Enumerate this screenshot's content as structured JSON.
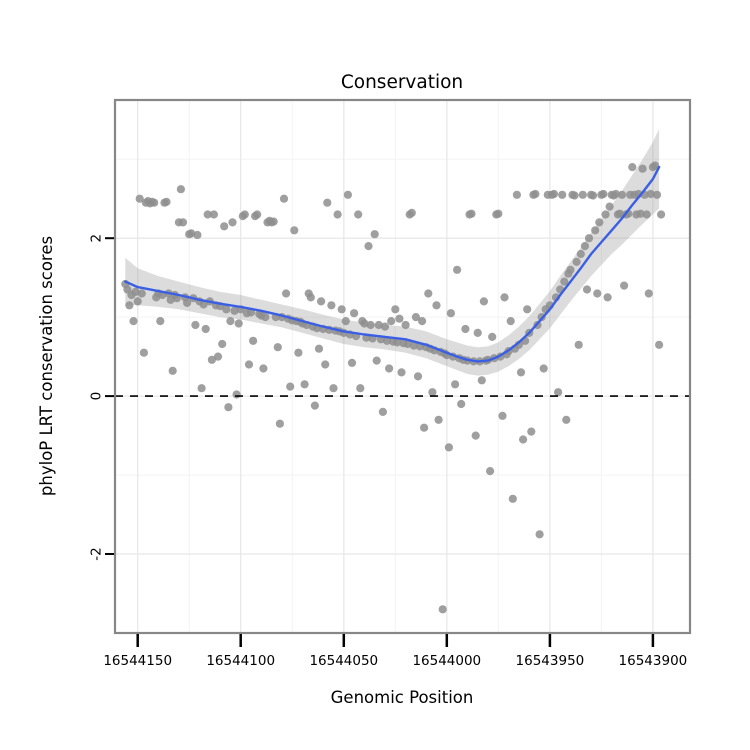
{
  "chart_data": {
    "type": "scatter",
    "title": "Conservation",
    "xlabel": "Genomic Position",
    "ylabel": "phyloP LRT conservation scores",
    "x_reversed": true,
    "x_domain": [
      16544161,
      16543882
    ],
    "y_domain": [
      -3.0,
      3.75
    ],
    "x_ticks": [
      16544150,
      16544100,
      16544050,
      16544000,
      16543950,
      16543900
    ],
    "x_tick_labels": [
      "16544150",
      "16544100",
      "16544050",
      "16544000",
      "16543950",
      "16543900"
    ],
    "x_minor_ticks": [
      16544125,
      16544075,
      16544025,
      16543975,
      16543925
    ],
    "y_ticks": [
      -2,
      0,
      2
    ],
    "y_tick_labels": [
      "-2",
      "0",
      "2"
    ],
    "y_minor_ticks": [
      -3,
      -1,
      1,
      3
    ],
    "reference_line_y": 0,
    "legend": "none",
    "grid": "on",
    "points": {
      "start": 16544156,
      "step": -1,
      "scores": [
        1.42,
        1.35,
        1.15,
        1.28,
        0.95,
        1.32,
        1.2,
        2.5,
        1.3,
        0.55,
        2.45,
        2.47,
        2.44,
        2.46,
        2.45,
        1.25,
        1.3,
        0.95,
        1.28,
        2.45,
        2.46,
        1.3,
        1.22,
        0.32,
        1.28,
        1.24,
        2.2,
        2.62,
        2.2,
        1.25,
        1.18,
        2.05,
        2.06,
        1.24,
        0.9,
        2.04,
        1.2,
        0.1,
        1.16,
        0.85,
        2.3,
        1.2,
        0.46,
        2.3,
        1.15,
        0.5,
        1.14,
        0.66,
        2.15,
        1.1,
        -0.14,
        0.95,
        2.2,
        1.08,
        0.02,
        0.92,
        1.1,
        2.28,
        2.3,
        1.05,
        0.4,
        1.06,
        0.7,
        2.28,
        2.3,
        1.04,
        1.02,
        0.35,
        1.0,
        2.2,
        2.22,
        2.2,
        2.21,
        1.0,
        0.62,
        -0.35,
        1.0,
        2.5,
        1.3,
        0.98,
        0.12,
        0.96,
        2.1,
        0.95,
        0.55,
        0.94,
        0.92,
        0.15,
        0.9,
        1.3,
        1.25,
        0.88,
        -0.12,
        0.86,
        0.6,
        1.2,
        0.85,
        0.4,
        2.45,
        0.84,
        1.15,
        0.1,
        0.83,
        2.3,
        0.82,
        1.1,
        0.8,
        0.95,
        2.55,
        0.78,
        0.42,
        1.05,
        0.76,
        2.3,
        0.1,
        0.95,
        0.92,
        0.74,
        1.9,
        0.9,
        0.73,
        2.05,
        0.45,
        0.9,
        0.72,
        -0.2,
        0.88,
        0.7,
        0.35,
        0.95,
        0.69,
        1.1,
        0.68,
        0.98,
        0.3,
        0.67,
        0.9,
        0.66,
        2.3,
        2.32,
        0.64,
        1.0,
        0.25,
        0.63,
        0.95,
        -0.4,
        0.62,
        1.3,
        0.6,
        0.05,
        0.58,
        1.15,
        -0.3,
        0.56,
        -2.7,
        0.54,
        0.52,
        -0.65,
        1.05,
        0.5,
        0.15,
        1.6,
        0.48,
        -0.1,
        0.46,
        0.85,
        0.45,
        2.3,
        2.31,
        0.44,
        -0.5,
        0.8,
        0.44,
        0.2,
        1.2,
        0.45,
        0.46,
        -0.95,
        0.75,
        0.48,
        2.3,
        2.31,
        0.5,
        -0.25,
        1.25,
        0.53,
        0.57,
        0.95,
        -1.3,
        0.6,
        2.55,
        0.65,
        0.3,
        -0.55,
        0.7,
        1.1,
        0.8,
        -0.45,
        2.55,
        2.56,
        0.9,
        -1.75,
        1.0,
        0.35,
        1.1,
        2.55,
        1.15,
        2.55,
        2.56,
        1.25,
        0.05,
        1.35,
        2.55,
        1.45,
        -0.3,
        1.55,
        1.6,
        2.55,
        2.54,
        1.7,
        0.65,
        1.8,
        2.55,
        1.9,
        1.35,
        2.0,
        2.55,
        2.54,
        2.1,
        1.3,
        2.2,
        2.55,
        2.56,
        2.3,
        1.25,
        2.4,
        2.55,
        2.54,
        2.56,
        2.3,
        2.31,
        2.55,
        1.4,
        2.3,
        2.31,
        2.55,
        2.9,
        2.55,
        2.3,
        2.56,
        2.31,
        2.88,
        2.55,
        2.3,
        1.3,
        2.56,
        2.9,
        2.92,
        2.55,
        0.65,
        2.3
      ]
    },
    "smooth": {
      "x": [
        16544156,
        16544150,
        16544140,
        16544130,
        16544120,
        16544110,
        16544100,
        16544090,
        16544080,
        16544070,
        16544060,
        16544050,
        16544040,
        16544030,
        16544020,
        16544010,
        16544000,
        16543995,
        16543990,
        16543985,
        16543980,
        16543975,
        16543970,
        16543965,
        16543960,
        16543955,
        16543950,
        16543945,
        16543940,
        16543935,
        16543930,
        16543925,
        16543920,
        16543915,
        16543910,
        16543905,
        16543900,
        16543897
      ],
      "y": [
        1.45,
        1.38,
        1.33,
        1.28,
        1.22,
        1.17,
        1.13,
        1.08,
        1.02,
        0.95,
        0.88,
        0.82,
        0.78,
        0.75,
        0.72,
        0.65,
        0.55,
        0.5,
        0.46,
        0.44,
        0.45,
        0.5,
        0.58,
        0.68,
        0.8,
        0.95,
        1.1,
        1.28,
        1.45,
        1.62,
        1.8,
        1.95,
        2.1,
        2.25,
        2.42,
        2.58,
        2.75,
        2.9
      ],
      "lower": [
        1.15,
        1.15,
        1.13,
        1.1,
        1.05,
        1.0,
        0.97,
        0.92,
        0.87,
        0.8,
        0.73,
        0.66,
        0.62,
        0.59,
        0.55,
        0.48,
        0.38,
        0.33,
        0.28,
        0.26,
        0.27,
        0.31,
        0.38,
        0.47,
        0.58,
        0.72,
        0.86,
        1.03,
        1.2,
        1.36,
        1.52,
        1.66,
        1.8,
        1.92,
        2.05,
        2.18,
        2.3,
        2.38
      ],
      "upper": [
        1.75,
        1.62,
        1.52,
        1.45,
        1.38,
        1.32,
        1.28,
        1.22,
        1.16,
        1.1,
        1.03,
        0.97,
        0.93,
        0.9,
        0.88,
        0.82,
        0.72,
        0.68,
        0.64,
        0.62,
        0.63,
        0.68,
        0.77,
        0.88,
        1.01,
        1.17,
        1.33,
        1.52,
        1.7,
        1.88,
        2.07,
        2.24,
        2.42,
        2.6,
        2.8,
        3.0,
        3.22,
        3.38
      ]
    },
    "colors": {
      "point": "#8e8e8e",
      "smooth": "#3A5FE5",
      "ribbon": "#9b9b9b",
      "grid_major": "#e8e8e8",
      "grid_minor": "#f3f3f3",
      "panel_border": "#878787",
      "axis_text": "#000000",
      "reference_line": "#000000"
    }
  }
}
